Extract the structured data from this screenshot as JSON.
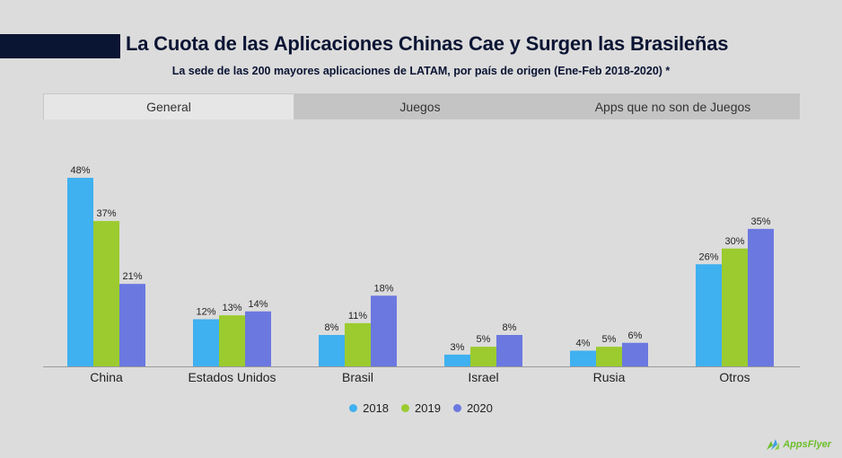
{
  "title": "La Cuota de las Aplicaciones Chinas Cae y Surgen las Brasileñas",
  "subtitle": "La sede de las 200 mayores aplicaciones de LATAM, por país de origen (Ene-Feb 2018-2020) *",
  "tabs": [
    {
      "label": "General",
      "active": true
    },
    {
      "label": "Juegos",
      "active": false
    },
    {
      "label": "Apps que no son de Juegos",
      "active": false
    }
  ],
  "logo_text": "AppsFlyer",
  "colors": {
    "background": "#dcdcdc",
    "title": "#0a1433",
    "axis": "#9a9a9a"
  },
  "chart_data": {
    "type": "bar",
    "categories": [
      "China",
      "Estados Unidos",
      "Brasil",
      "Israel",
      "Rusia",
      "Otros"
    ],
    "series": [
      {
        "name": "2018",
        "color": "#3fb0f0",
        "values": [
          48,
          12,
          8,
          3,
          4,
          26
        ]
      },
      {
        "name": "2019",
        "color": "#9bcb2e",
        "values": [
          37,
          13,
          11,
          5,
          5,
          30
        ]
      },
      {
        "name": "2020",
        "color": "#6b78e0",
        "values": [
          21,
          14,
          18,
          8,
          6,
          35
        ]
      }
    ],
    "value_suffix": "%",
    "ylim": [
      0,
      48
    ],
    "grid": false,
    "legend": "bottom-center"
  }
}
